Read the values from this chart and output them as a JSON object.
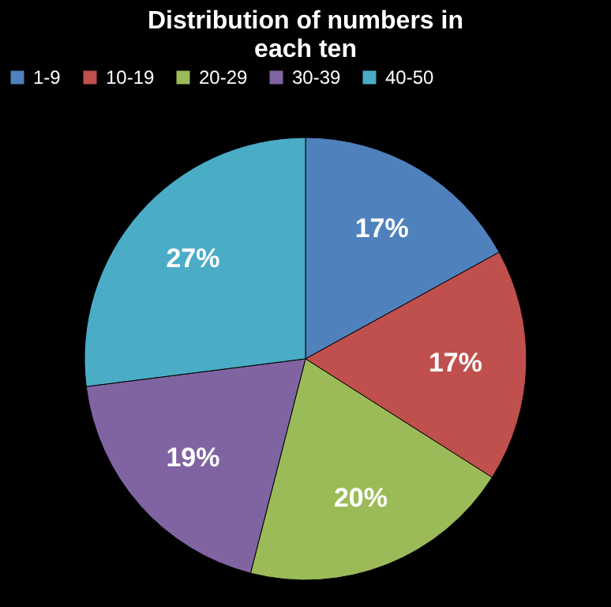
{
  "chart_data": {
    "type": "pie",
    "title": "Distribution of numbers in each ten",
    "categories": [
      "1-9",
      "10-19",
      "20-29",
      "30-39",
      "40-50"
    ],
    "values": [
      17,
      17,
      20,
      19,
      27
    ],
    "colors": [
      "#4f81bd",
      "#c0504d",
      "#9bbb59",
      "#8064a2",
      "#4bacc6"
    ],
    "value_labels": [
      "17%",
      "17%",
      "20%",
      "19%",
      "27%"
    ],
    "legend": "top"
  }
}
